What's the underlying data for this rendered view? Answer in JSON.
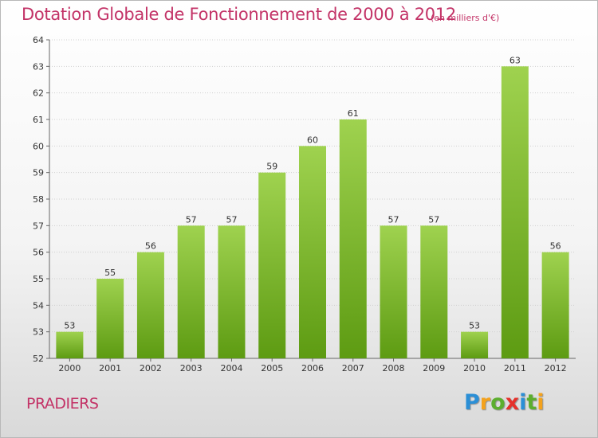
{
  "header": {
    "title": "Dotation Globale de Fonctionnement de 2000 à 2012",
    "subtitle": "(en milliers d'€)"
  },
  "footer": {
    "commune": "PRADIERS",
    "logo": {
      "text": "Proxiti",
      "letter_colors": [
        "#2b8fd6",
        "#f4a21c",
        "#5cae2e",
        "#e5312b",
        "#2b8fd6",
        "#5cae2e",
        "#f4a21c"
      ]
    }
  },
  "colors": {
    "bar_top": "#9fd24f",
    "bar_bottom": "#5d9b12",
    "accent": "#c33367",
    "grid": "#d0d0d0"
  },
  "chart_data": {
    "type": "bar",
    "title": "Dotation Globale de Fonctionnement de 2000 à 2012",
    "subtitle": "(en milliers d'€)",
    "categories": [
      "2000",
      "2001",
      "2002",
      "2003",
      "2004",
      "2005",
      "2006",
      "2007",
      "2008",
      "2009",
      "2010",
      "2011",
      "2012"
    ],
    "values": [
      53,
      55,
      56,
      57,
      57,
      59,
      60,
      61,
      57,
      57,
      53,
      63,
      56
    ],
    "ylim": [
      52,
      64
    ],
    "yticks": [
      52,
      53,
      54,
      55,
      56,
      57,
      58,
      59,
      60,
      61,
      62,
      63,
      64
    ],
    "grid": true,
    "data_labels": true
  }
}
